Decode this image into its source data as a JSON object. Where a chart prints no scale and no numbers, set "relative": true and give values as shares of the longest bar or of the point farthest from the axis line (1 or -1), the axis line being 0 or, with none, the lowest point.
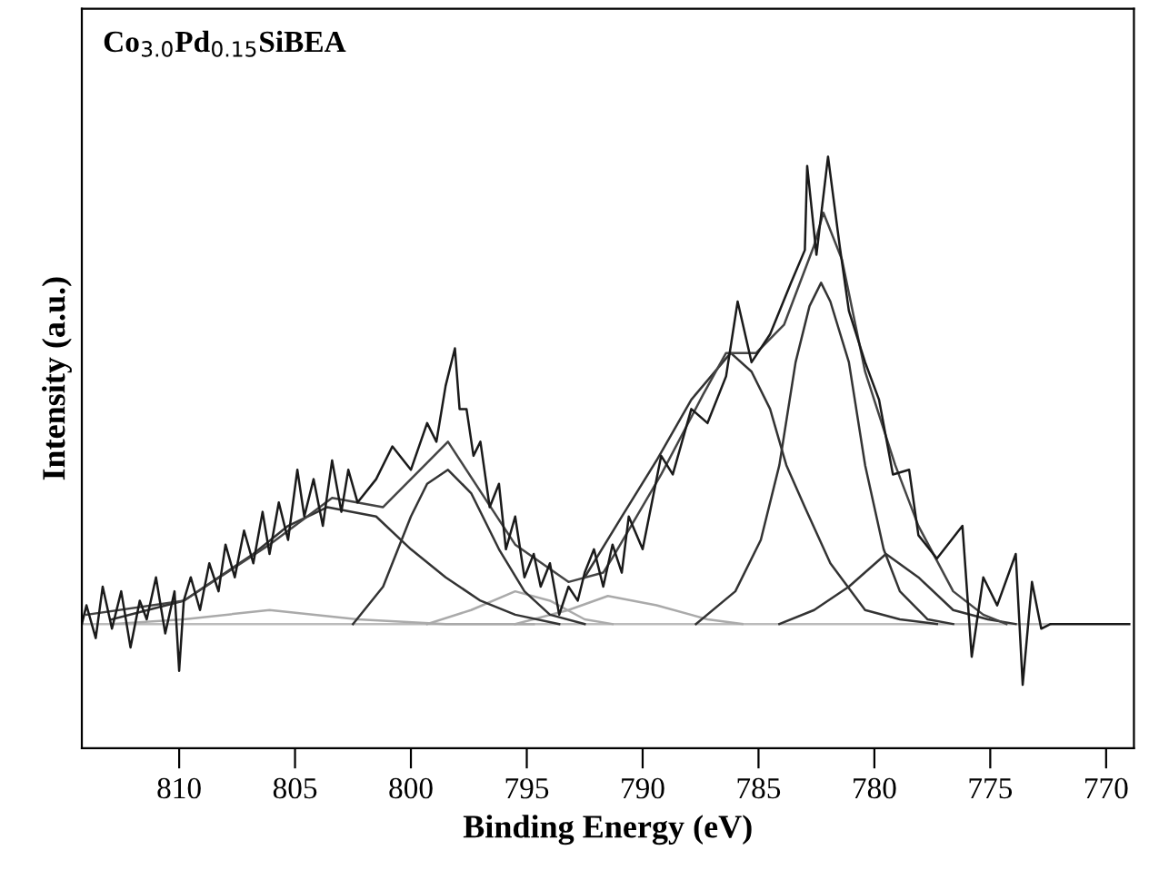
{
  "chart_data": {
    "type": "line",
    "relative": true,
    "title": "Co$_{3.0}$Pd$_{0.15}$SiBEA",
    "xlabel": "Binding Energy (eV)",
    "ylabel": "Intensity (a.u.)",
    "xlim": [
      814.2,
      768.8
    ],
    "xticks": [
      810,
      805,
      800,
      795,
      790,
      785,
      780,
      775,
      770
    ],
    "grid": false,
    "legend": false,
    "marker": "none",
    "line_style": "solid",
    "tick_labels": "x",
    "series": [
      {
        "color": "#bbbbbb",
        "x": [
          814.2,
          772.4
        ],
        "values": [
          0,
          0
        ]
      },
      {
        "color": "#aaaaaa",
        "x": [
          812.9,
          809.8,
          806.1,
          802.3,
          798.5,
          794.7
        ],
        "values": [
          0,
          0.01,
          0.03,
          0.01,
          0,
          0
        ]
      },
      {
        "color": "#aaaaaa",
        "x": [
          799.3,
          797.4,
          795.5,
          794.0,
          792.5,
          791.3
        ],
        "values": [
          0,
          0.03,
          0.07,
          0.05,
          0.01,
          0
        ]
      },
      {
        "color": "#aaaaaa",
        "x": [
          795.5,
          793.2,
          791.5,
          789.4,
          787.2,
          785.7
        ],
        "values": [
          0,
          0.03,
          0.06,
          0.04,
          0.01,
          0
        ]
      },
      {
        "color": "#333333",
        "x": [
          812.9,
          809.8,
          806.8,
          805.3,
          803.6,
          801.5,
          800.0,
          798.5,
          797.0,
          795.5,
          793.6
        ],
        "values": [
          0.01,
          0.05,
          0.15,
          0.21,
          0.25,
          0.23,
          0.16,
          0.1,
          0.05,
          0.02,
          0
        ]
      },
      {
        "color": "#333333",
        "x": [
          802.5,
          801.2,
          800.0,
          799.3,
          798.4,
          797.4,
          796.2,
          795.1,
          794.0,
          792.5
        ],
        "values": [
          0,
          0.08,
          0.23,
          0.3,
          0.33,
          0.28,
          0.16,
          0.07,
          0.02,
          0
        ]
      },
      {
        "color": "#333333",
        "x": [
          792.5,
          790.9,
          789.4,
          787.9,
          786.2,
          785.3,
          784.5,
          783.8,
          783.0,
          781.9,
          780.4,
          778.9,
          777.3
        ],
        "values": [
          0.1,
          0.23,
          0.35,
          0.48,
          0.58,
          0.54,
          0.46,
          0.34,
          0.25,
          0.13,
          0.03,
          0.01,
          0
        ]
      },
      {
        "color": "#333333",
        "x": [
          787.7,
          786.0,
          784.9,
          784.1,
          783.4,
          782.8,
          782.3,
          781.9,
          781.1,
          780.4,
          779.6,
          778.9,
          777.7,
          776.6
        ],
        "values": [
          0,
          0.07,
          0.18,
          0.34,
          0.56,
          0.68,
          0.73,
          0.69,
          0.56,
          0.34,
          0.16,
          0.07,
          0.01,
          0
        ]
      },
      {
        "color": "#333333",
        "x": [
          784.1,
          782.6,
          781.1,
          779.5,
          778.1,
          776.6,
          775.1,
          773.9
        ],
        "values": [
          0,
          0.03,
          0.08,
          0.15,
          0.1,
          0.03,
          0.01,
          0
        ]
      },
      {
        "color": "#444444",
        "x": [
          814.0,
          809.8,
          806.1,
          803.4,
          801.2,
          798.4,
          795.5,
          793.2,
          791.7,
          791.2,
          789.2,
          787.4,
          786.4,
          785.1,
          783.9,
          782.6,
          782.2,
          781.4,
          780.4,
          779.1,
          778.1,
          776.6,
          775.3,
          774.3
        ],
        "values": [
          0.02,
          0.05,
          0.17,
          0.27,
          0.25,
          0.39,
          0.17,
          0.09,
          0.11,
          0.15,
          0.32,
          0.49,
          0.58,
          0.58,
          0.64,
          0.81,
          0.88,
          0.78,
          0.54,
          0.34,
          0.21,
          0.07,
          0.02,
          0
        ]
      },
      {
        "color": "#1a1a1a",
        "x": [
          814.2,
          814.0,
          813.6,
          813.3,
          812.9,
          812.5,
          812.1,
          811.7,
          811.4,
          811.0,
          810.6,
          810.2,
          810.0,
          809.8,
          809.5,
          809.1,
          808.7,
          808.3,
          808.0,
          807.6,
          807.2,
          806.8,
          806.4,
          806.1,
          805.7,
          805.3,
          804.9,
          804.6,
          804.2,
          803.8,
          803.4,
          803.0,
          802.7,
          802.3,
          801.5,
          800.8,
          800.0,
          799.3,
          798.9,
          798.5,
          798.1,
          797.9,
          797.6,
          797.3,
          797.0,
          796.6,
          796.2,
          795.9,
          795.5,
          795.1,
          794.7,
          794.4,
          794.0,
          793.6,
          793.2,
          792.8,
          792.5,
          792.1,
          791.7,
          791.3,
          790.9,
          790.6,
          790.0,
          789.2,
          788.7,
          787.9,
          787.2,
          786.4,
          785.9,
          785.3,
          784.5,
          783.6,
          783.0,
          782.9,
          782.5,
          782.0,
          781.5,
          781.1,
          780.4,
          779.8,
          779.2,
          778.5,
          778.1,
          777.3,
          776.2,
          775.8,
          775.3,
          774.7,
          773.9,
          773.6,
          773.2,
          772.8,
          772.4,
          769.0
        ],
        "values": [
          0,
          0.04,
          -0.03,
          0.08,
          -0.01,
          0.07,
          -0.05,
          0.05,
          0.01,
          0.1,
          -0.02,
          0.07,
          -0.1,
          0.05,
          0.1,
          0.03,
          0.13,
          0.07,
          0.17,
          0.1,
          0.2,
          0.13,
          0.24,
          0.15,
          0.26,
          0.18,
          0.33,
          0.23,
          0.31,
          0.21,
          0.35,
          0.24,
          0.33,
          0.26,
          0.31,
          0.38,
          0.33,
          0.43,
          0.39,
          0.51,
          0.59,
          0.46,
          0.46,
          0.36,
          0.39,
          0.25,
          0.3,
          0.16,
          0.23,
          0.1,
          0.15,
          0.08,
          0.13,
          0.02,
          0.08,
          0.05,
          0.11,
          0.16,
          0.08,
          0.17,
          0.11,
          0.23,
          0.16,
          0.36,
          0.32,
          0.46,
          0.43,
          0.53,
          0.69,
          0.56,
          0.62,
          0.73,
          0.8,
          0.98,
          0.79,
          1.0,
          0.81,
          0.67,
          0.56,
          0.48,
          0.32,
          0.33,
          0.19,
          0.14,
          0.21,
          -0.07,
          0.1,
          0.04,
          0.15,
          -0.13,
          0.09,
          -0.01,
          0,
          0
        ]
      }
    ]
  }
}
